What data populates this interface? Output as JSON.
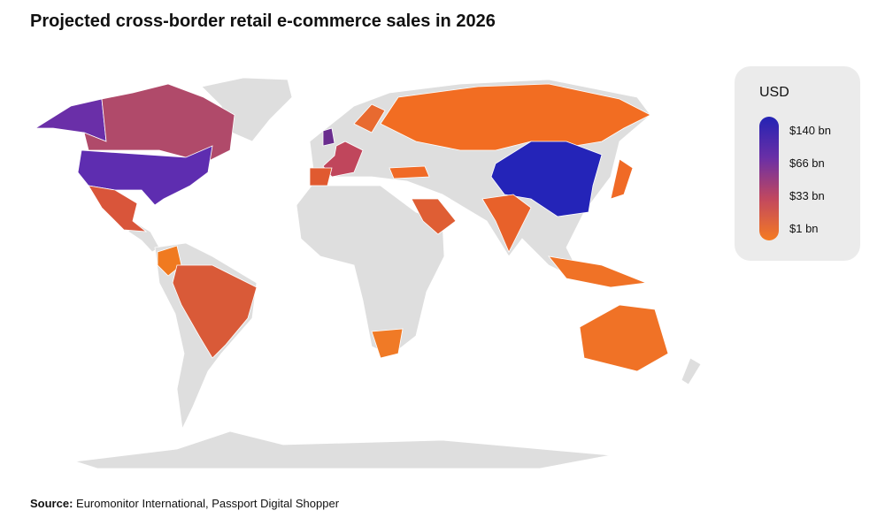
{
  "title": "Projected cross-border retail e-commerce sales in 2026",
  "legend": {
    "title": "USD",
    "labels": [
      "$140 bn",
      "$66 bn",
      "$33 bn",
      "$1 bn"
    ],
    "colors": [
      "#2323b4",
      "#6a2fa6",
      "#c2485e",
      "#f57b22"
    ]
  },
  "source": {
    "label": "Source:",
    "text": "Euromonitor International, Passport Digital Shopper"
  }
}
